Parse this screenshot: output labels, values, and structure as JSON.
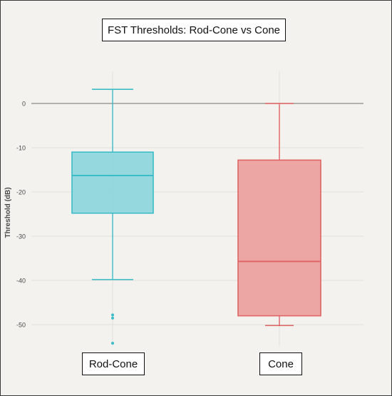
{
  "chart_data": {
    "type": "box",
    "title": "FST Thresholds: Rod-Cone vs Cone",
    "ylabel": "Threshold (dB)",
    "xlabel": "",
    "ylim": [
      -53,
      5
    ],
    "yticks": [
      0,
      -10,
      -20,
      -30,
      -40,
      -50
    ],
    "grid": true,
    "reference_line": 0,
    "categories": [
      "Rod-Cone",
      "Cone"
    ],
    "boxes": [
      {
        "category": "Rod-Cone",
        "whisker_high": 3.2,
        "q3": -11,
        "median": -16.3,
        "q1": -24.8,
        "whisker_low": -39.8,
        "outliers": [
          -47.8,
          -48.5,
          -54.2
        ],
        "color": "#3bbcc8",
        "fill": "#8fd6dc"
      },
      {
        "category": "Cone",
        "whisker_high": 0,
        "q3": -12.8,
        "median": -35.7,
        "q1": -48,
        "whisker_low": -50.2,
        "outliers": [],
        "color": "#e06464",
        "fill": "#eba2a0"
      }
    ]
  },
  "colors": {
    "background": "#f3f2ee",
    "grid": "#e2e1dc",
    "zero_line": "#8a8a86",
    "tick_text": "#4a4a4a"
  }
}
